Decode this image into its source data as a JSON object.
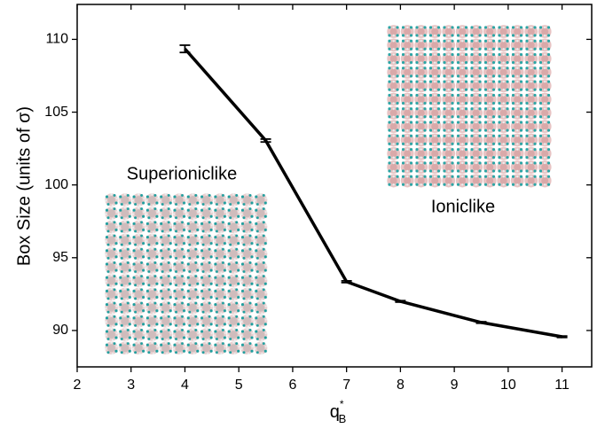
{
  "chart_data": {
    "type": "line",
    "x_label": "q",
    "x_label_sup": "*",
    "x_label_sub": "B",
    "y_label": "Box Size (units of σ)",
    "annotations": [
      "Superioniclike",
      "Ioniclike"
    ],
    "x": [
      4,
      5.5,
      7,
      8,
      9.5,
      11
    ],
    "series": [
      {
        "color": "#000000",
        "values": [
          109.35,
          103.05,
          93.35,
          92.0,
          90.55,
          89.57
        ],
        "errors": [
          0.25,
          0.1,
          0.06,
          0.05,
          0.05,
          0.05
        ]
      }
    ],
    "xlim": [
      2,
      11.55
    ],
    "xticks": [
      2,
      3,
      4,
      5,
      6,
      7,
      8,
      9,
      10,
      11
    ],
    "ylim": [
      87.5,
      112.4
    ],
    "yticks": [
      90,
      95,
      100,
      105,
      110
    ]
  }
}
